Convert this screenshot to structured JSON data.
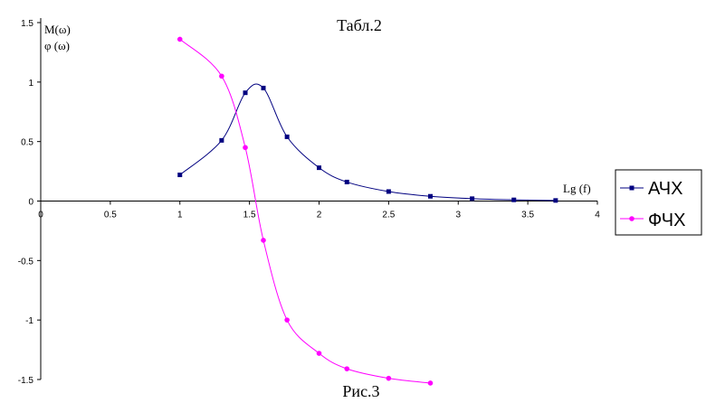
{
  "chart_data": {
    "type": "line",
    "title": "Табл.2",
    "caption": "Рис.3",
    "xlabel": "Lg (f)",
    "ylabel_lines": [
      "M(ω)",
      "φ (ω)"
    ],
    "xlim": [
      0,
      4
    ],
    "ylim": [
      -1.5,
      1.5
    ],
    "x_ticks": [
      {
        "value": 0,
        "label": "0"
      },
      {
        "value": 0.5,
        "label": "0.5"
      },
      {
        "value": 1,
        "label": "1"
      },
      {
        "value": 1.5,
        "label": "1.5"
      },
      {
        "value": 2,
        "label": "2"
      },
      {
        "value": 2.5,
        "label": "2.5"
      },
      {
        "value": 3,
        "label": "3"
      },
      {
        "value": 3.5,
        "label": "3.5"
      },
      {
        "value": 4,
        "label": "4"
      }
    ],
    "y_ticks": [
      {
        "value": 1.5,
        "label": "1.5"
      },
      {
        "value": 1,
        "label": "1"
      },
      {
        "value": 0.5,
        "label": "0.5"
      },
      {
        "value": 0,
        "label": "0"
      },
      {
        "value": -0.5,
        "label": "-0.5"
      },
      {
        "value": -1,
        "label": "-1"
      },
      {
        "value": -1.5,
        "label": "-1.5"
      }
    ],
    "grid": false,
    "legend_position": "right",
    "series": [
      {
        "name": "АЧХ",
        "color": "#000080",
        "marker": "square",
        "x": [
          1,
          1.3,
          1.47,
          1.6,
          1.77,
          2,
          2.2,
          2.5,
          2.8,
          3.1,
          3.4,
          3.7
        ],
        "y": [
          0.22,
          0.51,
          0.91,
          0.95,
          0.54,
          0.28,
          0.16,
          0.08,
          0.04,
          0.02,
          0.01,
          0.005
        ]
      },
      {
        "name": "ФЧХ",
        "color": "#ff00ff",
        "marker": "circle",
        "x": [
          1,
          1.3,
          1.47,
          1.6,
          1.77,
          2,
          2.2,
          2.5,
          2.8
        ],
        "y": [
          1.36,
          1.05,
          0.45,
          -0.33,
          -1.0,
          -1.28,
          -1.41,
          -1.49,
          -1.53
        ]
      }
    ]
  }
}
